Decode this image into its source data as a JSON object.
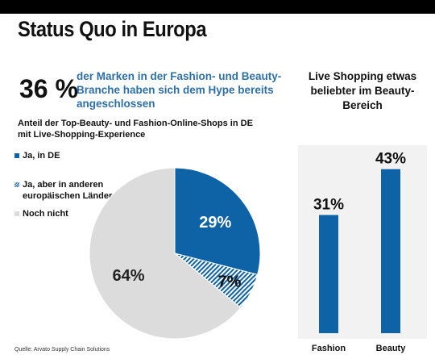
{
  "header": {
    "title": "Status Quo in Europa"
  },
  "highlight": {
    "value": "36 %",
    "text": "der Marken in der Fashion- und Beauty-Branche haben sich dem Hype bereits angeschlossen"
  },
  "source": "Quelle: Arvato Supply Chain Solutions",
  "colors": {
    "blue": "#0e62a6",
    "hatch": "#0e62a6",
    "grey": "#dcdcdc",
    "panel": "#f2f2f2"
  },
  "chart_data": [
    {
      "type": "pie",
      "title": "Anteil der Top-Beauty- und Fashion-Online-Shops in DE mit Live-Shopping-Experience",
      "legend_position": "left",
      "slices": [
        {
          "name": "Ja, in DE",
          "value": 29,
          "label": "29%",
          "color": "#0e62a6",
          "pattern": "solid"
        },
        {
          "name": "Ja, aber in anderen europäischen Ländern",
          "value": 7,
          "label": "7%",
          "color": "#0e62a6",
          "pattern": "hatch"
        },
        {
          "name": "Noch nicht",
          "value": 64,
          "label": "64%",
          "color": "#dcdcdc",
          "pattern": "solid"
        }
      ]
    },
    {
      "type": "bar",
      "title": "Live Shopping etwas beliebter im Beauty-Bereich",
      "categories": [
        "Fashion",
        "Beauty"
      ],
      "values": [
        31,
        43
      ],
      "labels": [
        "31%",
        "43%"
      ],
      "ylim": [
        0,
        55
      ],
      "grid": false,
      "color": "#0e62a6"
    }
  ]
}
